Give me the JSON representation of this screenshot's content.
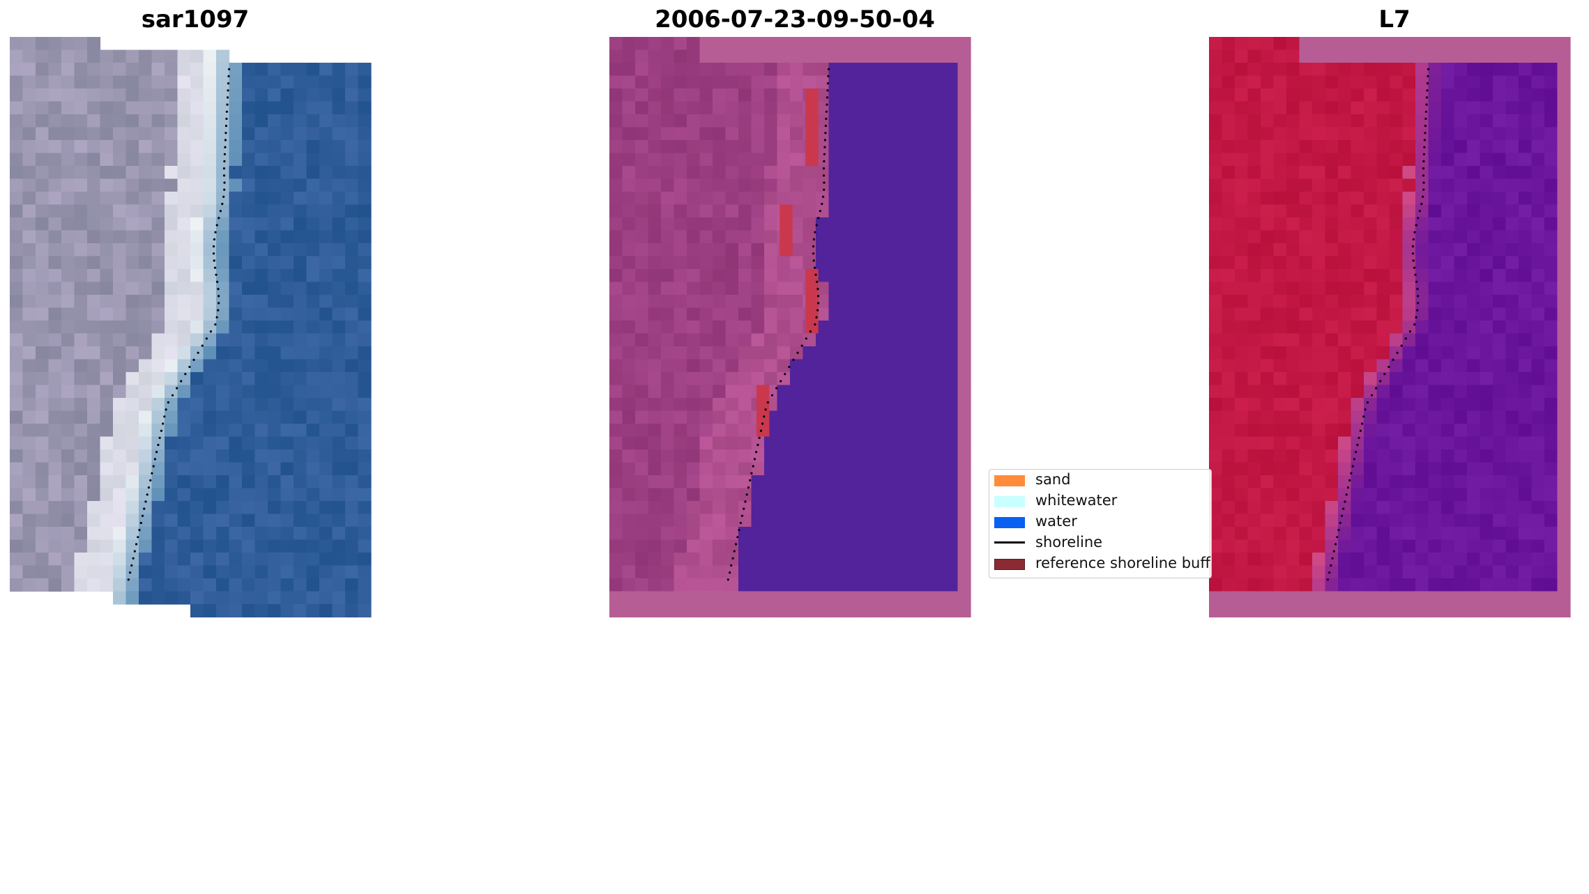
{
  "panels": [
    {
      "title": "sar1097",
      "style": "rgb"
    },
    {
      "title": "2006-07-23-09-50-04",
      "style": "classified"
    },
    {
      "title": "L7",
      "style": "index"
    }
  ],
  "legend": {
    "items": [
      {
        "label": "sand",
        "color": "#ff8c3a",
        "kind": "patch"
      },
      {
        "label": "whitewater",
        "color": "#c8ffff",
        "kind": "patch"
      },
      {
        "label": "water",
        "color": "#0a60f0",
        "kind": "patch"
      },
      {
        "label": "shoreline",
        "color": "#000000",
        "kind": "line"
      },
      {
        "label": "reference shoreline buffer",
        "color": "#8b2a33",
        "kind": "patch"
      }
    ]
  },
  "colors": {
    "sand_rgb": "#9a96b0",
    "whitewater_rgb": "#eef2f4",
    "water_rgb": "#2f5d99",
    "land_classified": "#9c3f82",
    "water_classified": "#52239a",
    "buffer_classified": "#c9384d",
    "nodata_classified": "#b75d95",
    "land_index": "#c21744",
    "water_index": "#6a159c"
  }
}
